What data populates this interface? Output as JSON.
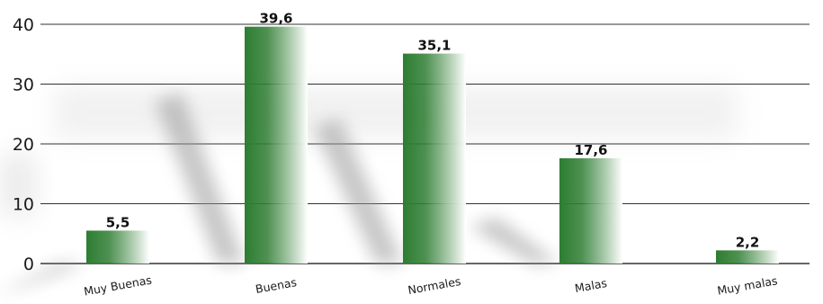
{
  "chart_data": {
    "type": "bar",
    "title": "",
    "xlabel": "",
    "ylabel": "",
    "categories": [
      "Muy Buenas",
      "Buenas",
      "Normales",
      "Malas",
      "Muy malas"
    ],
    "values": [
      5.5,
      39.6,
      35.1,
      17.6,
      2.2
    ],
    "value_labels": [
      "5,5",
      "39,6",
      "35,1",
      "17,6",
      "2,2"
    ],
    "ylim": [
      0,
      40
    ],
    "yticks": [
      0,
      10,
      20,
      30,
      40
    ],
    "grid": true,
    "legend": "none",
    "colors": {
      "bar_dark": "#2e7d32",
      "bar_light": "#ffffff",
      "grid": "#333333",
      "shadow": "#9a9a9a"
    }
  }
}
